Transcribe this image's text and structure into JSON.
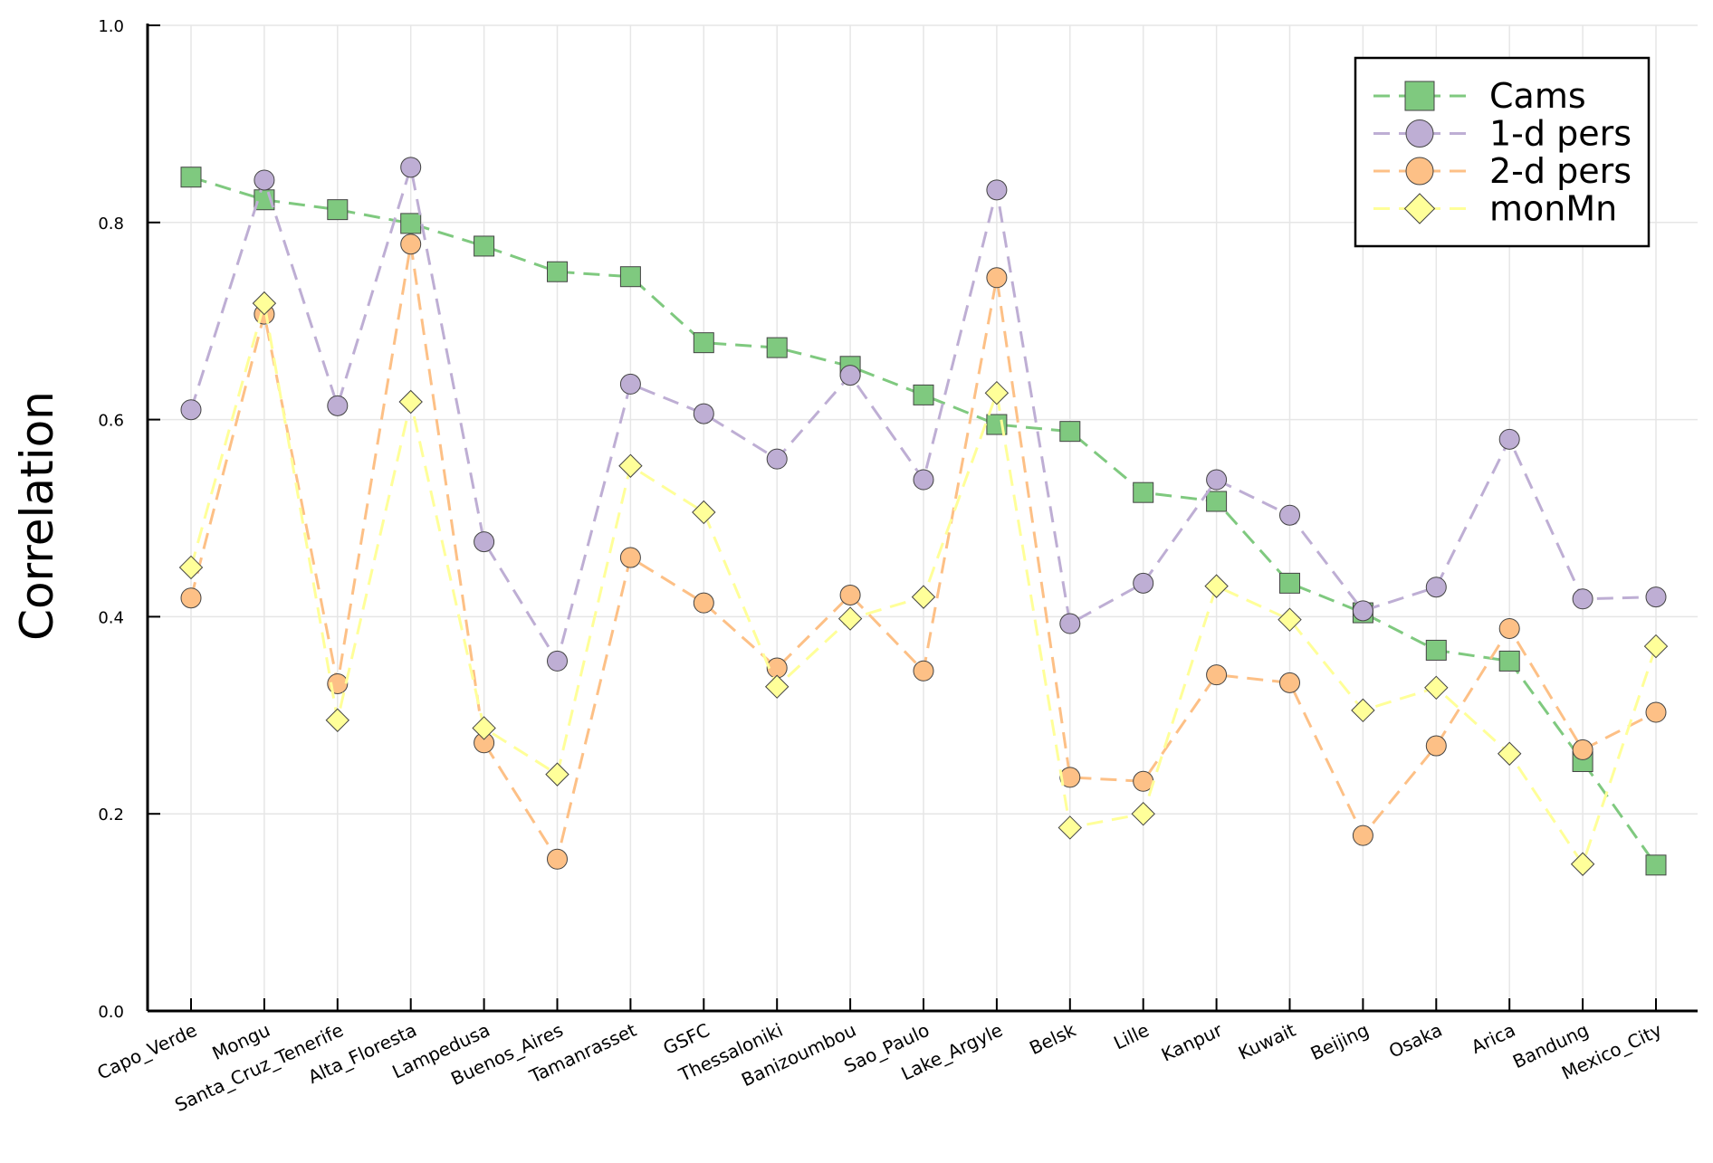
{
  "chart_data": {
    "type": "line",
    "ylabel": "Correlation",
    "ylim": [
      0.0,
      1.0
    ],
    "yticks": [
      "0.0",
      "0.2",
      "0.4",
      "0.6",
      "0.8",
      "1.0"
    ],
    "grid": true,
    "legend_position": "top-right",
    "categories": [
      "Capo_Verde",
      "Mongu",
      "Santa_Cruz_Tenerife",
      "Alta_Floresta",
      "Lampedusa",
      "Buenos_Aires",
      "Tamanrasset",
      "GSFC",
      "Thessaloniki",
      "Banizoumbou",
      "Sao_Paulo",
      "Lake_Argyle",
      "Belsk",
      "Lille",
      "Kanpur",
      "Kuwait",
      "Beijing",
      "Osaka",
      "Arica",
      "Bandung",
      "Mexico_City"
    ],
    "series": [
      {
        "name": "Cams",
        "marker": "square",
        "color": "#7fc97f",
        "values": [
          0.846,
          0.823,
          0.813,
          0.799,
          0.776,
          0.75,
          0.745,
          0.678,
          0.673,
          0.654,
          0.625,
          0.595,
          0.588,
          0.526,
          0.517,
          0.434,
          0.404,
          0.366,
          0.355,
          0.253,
          0.148
        ]
      },
      {
        "name": "1-d pers",
        "marker": "circle",
        "color": "#beaed4",
        "values": [
          0.61,
          0.843,
          0.614,
          0.856,
          0.476,
          0.355,
          0.636,
          0.606,
          0.56,
          0.645,
          0.539,
          0.833,
          0.393,
          0.434,
          0.539,
          0.503,
          0.406,
          0.43,
          0.58,
          0.418,
          0.42
        ]
      },
      {
        "name": "2-d pers",
        "marker": "circle",
        "color": "#fdc086",
        "values": [
          0.419,
          0.707,
          0.332,
          0.778,
          0.272,
          0.154,
          0.46,
          0.414,
          0.348,
          0.422,
          0.345,
          0.744,
          0.237,
          0.233,
          0.341,
          0.333,
          0.178,
          0.269,
          0.388,
          0.265,
          0.303
        ]
      },
      {
        "name": "monMn",
        "marker": "diamond",
        "color": "#ffff99",
        "values": [
          0.45,
          0.718,
          0.295,
          0.618,
          0.287,
          0.24,
          0.553,
          0.506,
          0.329,
          0.398,
          0.42,
          0.627,
          0.186,
          0.2,
          0.431,
          0.397,
          0.305,
          0.328,
          0.261,
          0.149,
          0.37
        ]
      }
    ]
  }
}
